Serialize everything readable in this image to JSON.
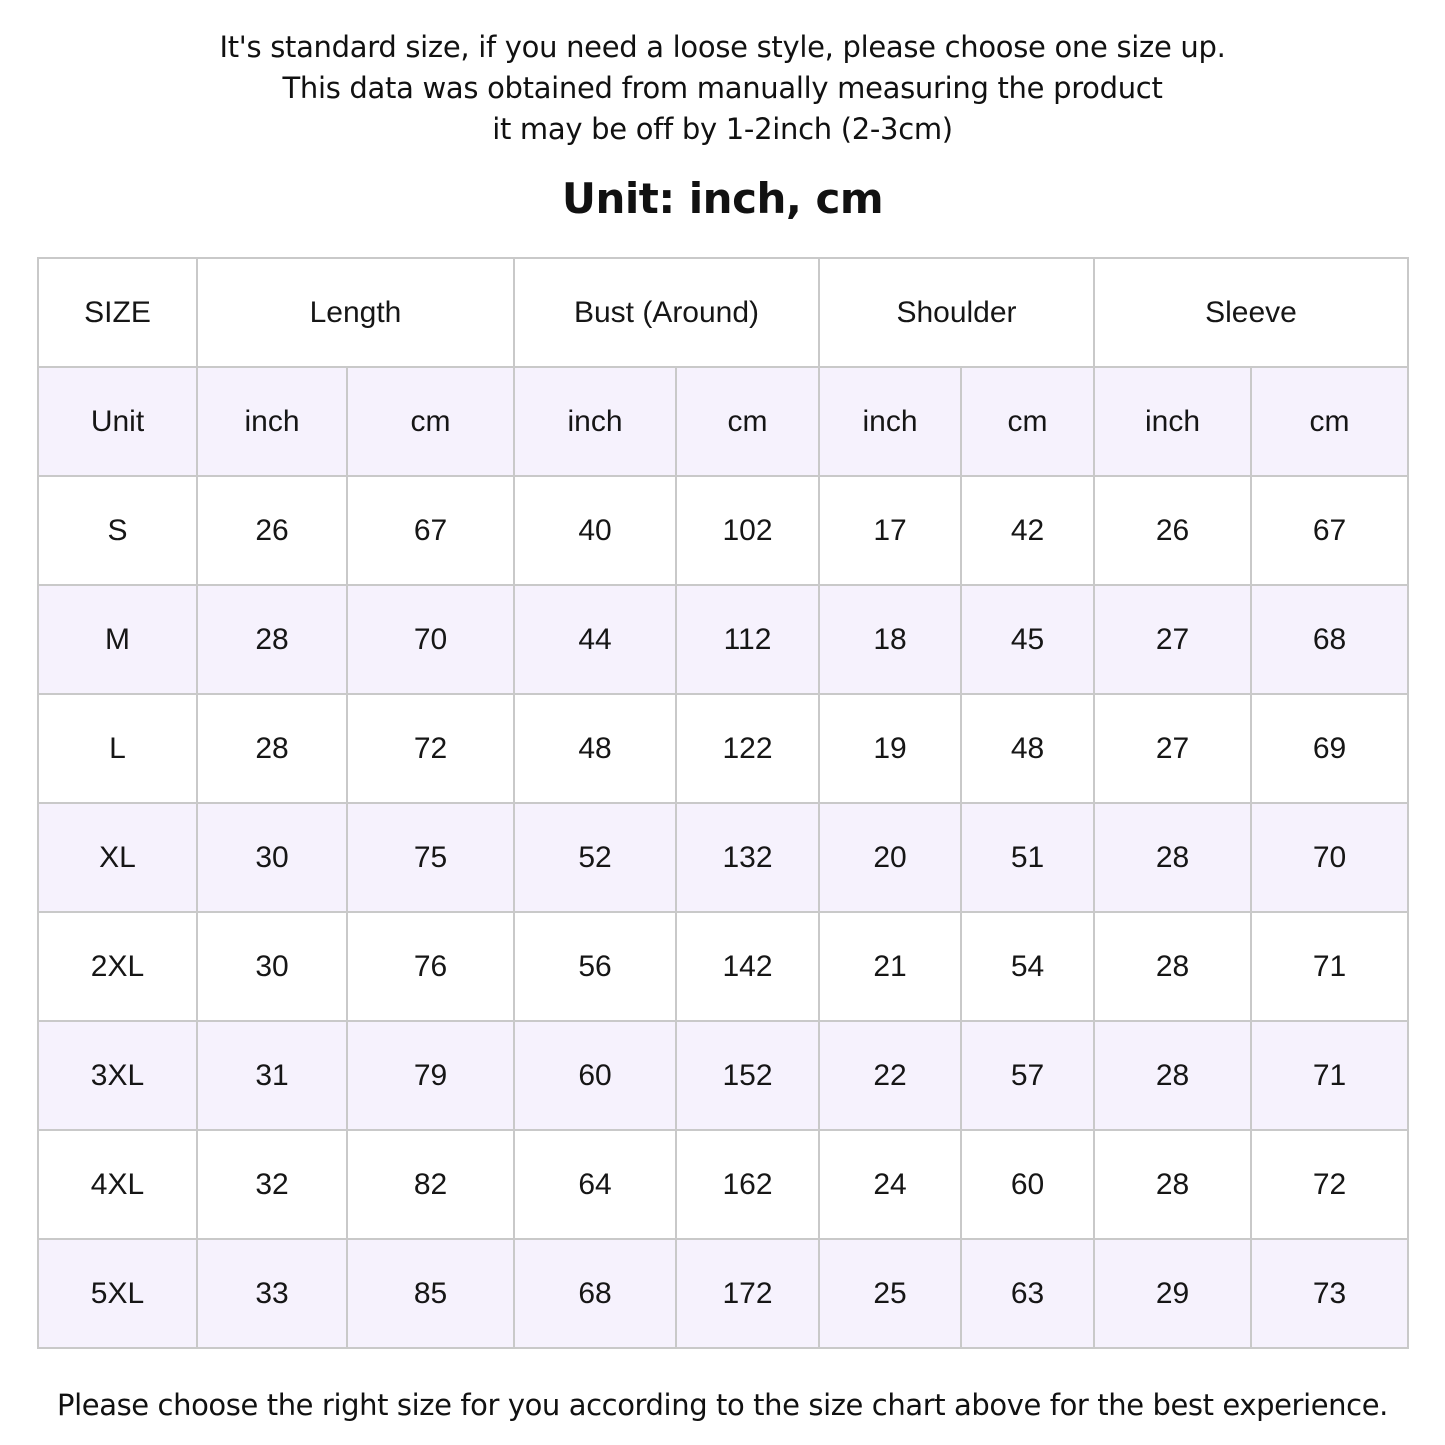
{
  "notes": [
    "It's standard size, if you need a loose style, please choose one size up.",
    "This data was obtained from manually measuring the product",
    "it may be off by 1-2inch (2-3cm)"
  ],
  "unit_title": "Unit: inch, cm",
  "table": {
    "size_header": "SIZE",
    "groups": [
      "Length",
      "Bust (Around)",
      "Shoulder",
      "Sleeve"
    ],
    "unit_row": [
      "Unit",
      "inch",
      "cm",
      "inch",
      "cm",
      "inch",
      "cm",
      "inch",
      "cm"
    ],
    "rows": [
      [
        "S",
        "26",
        "67",
        "40",
        "102",
        "17",
        "42",
        "26",
        "67"
      ],
      [
        "M",
        "28",
        "70",
        "44",
        "112",
        "18",
        "45",
        "27",
        "68"
      ],
      [
        "L",
        "28",
        "72",
        "48",
        "122",
        "19",
        "48",
        "27",
        "69"
      ],
      [
        "XL",
        "30",
        "75",
        "52",
        "132",
        "20",
        "51",
        "28",
        "70"
      ],
      [
        "2XL",
        "30",
        "76",
        "56",
        "142",
        "21",
        "54",
        "28",
        "71"
      ],
      [
        "3XL",
        "31",
        "79",
        "60",
        "152",
        "22",
        "57",
        "28",
        "71"
      ],
      [
        "4XL",
        "32",
        "82",
        "64",
        "162",
        "24",
        "60",
        "28",
        "72"
      ],
      [
        "5XL",
        "33",
        "85",
        "68",
        "172",
        "25",
        "63",
        "29",
        "73"
      ]
    ],
    "shade_color": "#f6f2fd",
    "border_color": "#c9c9c9"
  },
  "footer": "Please choose the right size for you according to the size chart above for the best experience."
}
